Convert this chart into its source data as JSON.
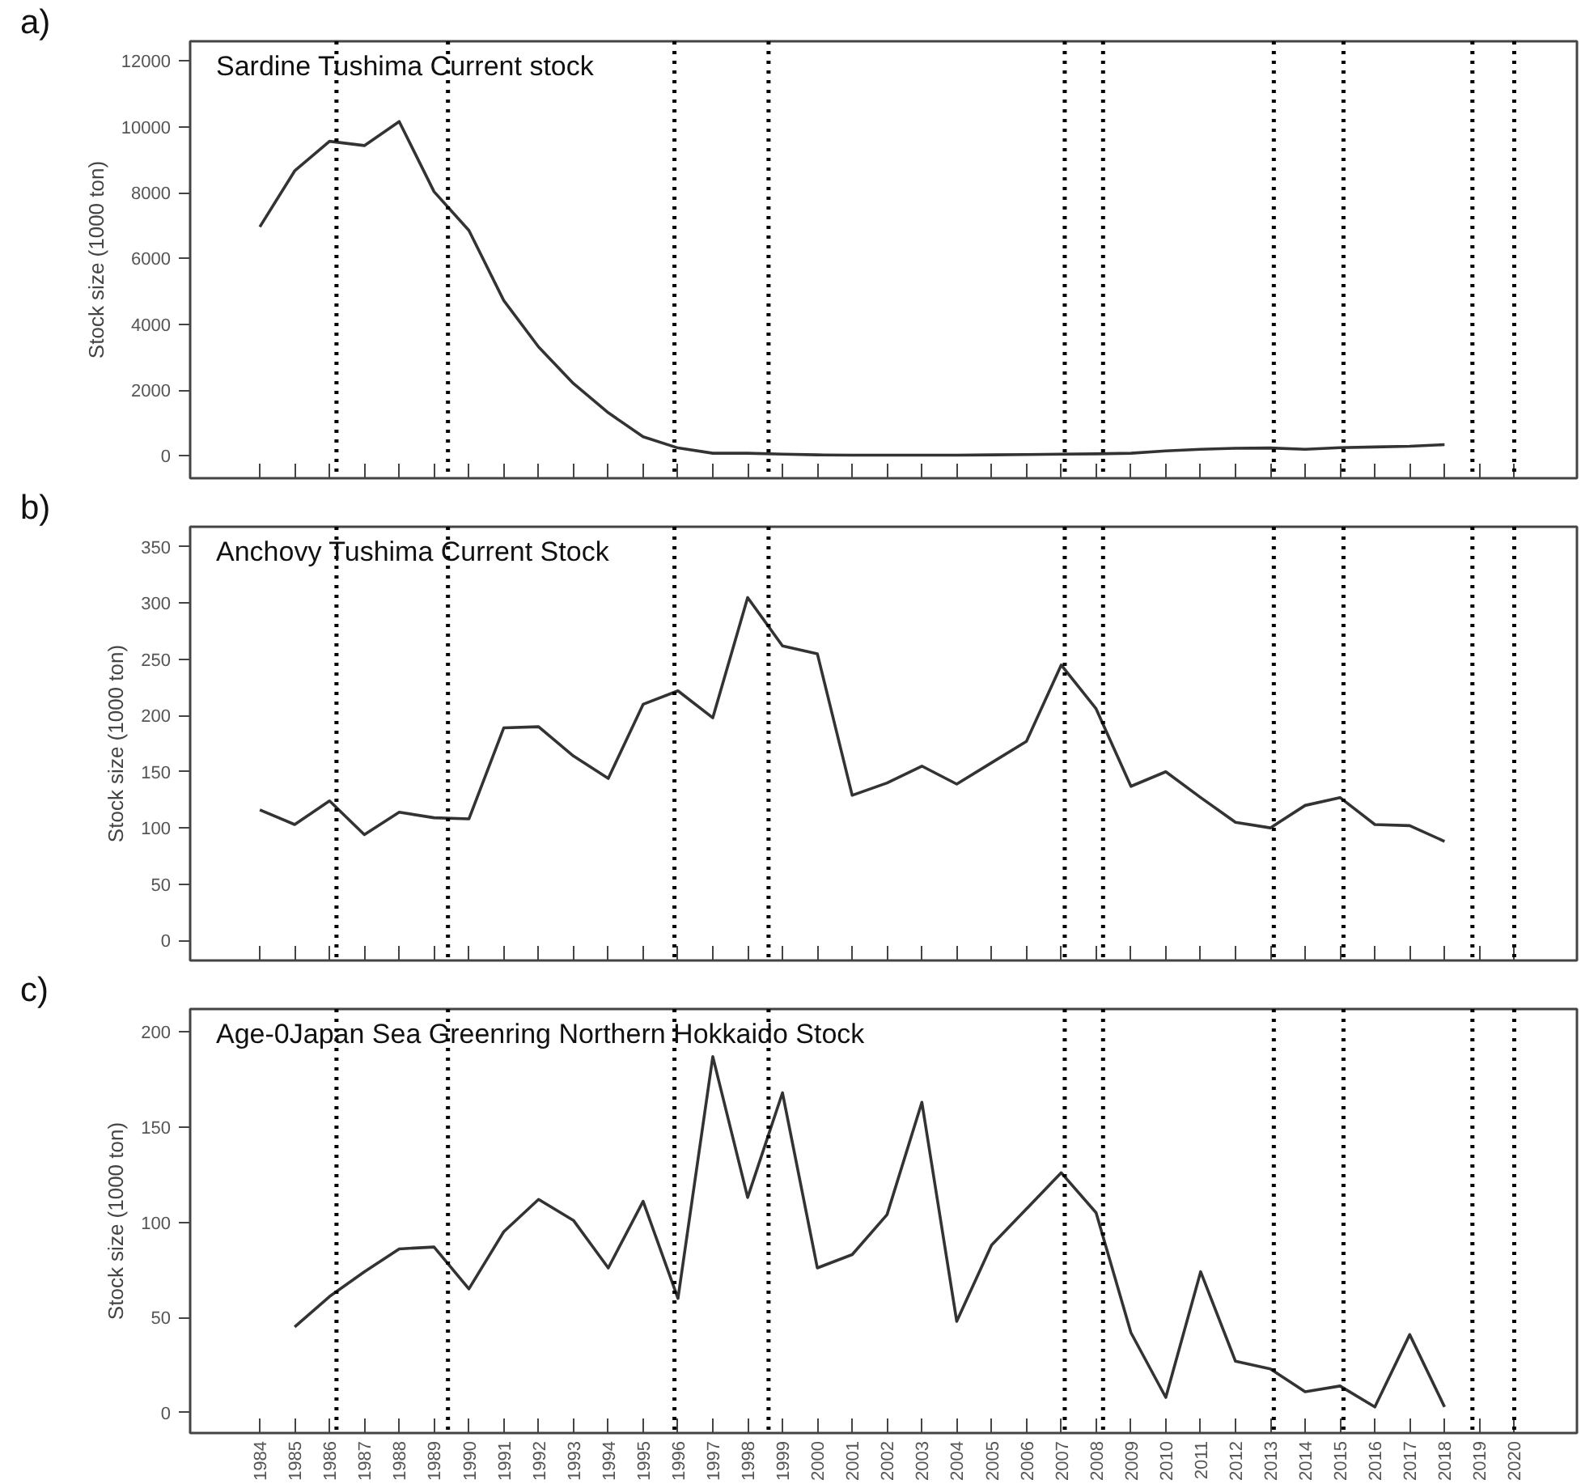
{
  "chart_data": [
    {
      "type": "line",
      "title": "Sardine Tushima Current stock",
      "ylabel": "Stock size (1000 ton)",
      "annotations": [
        "a)"
      ],
      "color": "#333333",
      "x": [
        1984,
        1985,
        1986,
        1987,
        1988,
        1989,
        1990,
        1991,
        1992,
        1993,
        1994,
        1995,
        1996,
        1997,
        1998,
        1999,
        2000,
        2001,
        2002,
        2003,
        2004,
        2005,
        2006,
        2007,
        2008,
        2009,
        2010,
        2011,
        2012,
        2013,
        2014,
        2015,
        2016,
        2017,
        2018
      ],
      "values": [
        6960,
        8660,
        9560,
        9430,
        10160,
        8030,
        6850,
        4720,
        3310,
        2200,
        1310,
        580,
        240,
        80,
        80,
        50,
        30,
        20,
        20,
        20,
        20,
        30,
        40,
        50,
        60,
        80,
        150,
        200,
        230,
        240,
        200,
        250,
        270,
        290,
        340
      ],
      "xlim": [
        1982.0,
        2021.8
      ],
      "xticks": [
        {
          "value": 1984,
          "label": null
        },
        {
          "value": 1985,
          "label": null
        },
        {
          "value": 1986,
          "label": null
        },
        {
          "value": 1987,
          "label": null
        },
        {
          "value": 1988,
          "label": null
        },
        {
          "value": 1989,
          "label": null
        },
        {
          "value": 1990,
          "label": null
        },
        {
          "value": 1991,
          "label": null
        },
        {
          "value": 1992,
          "label": null
        },
        {
          "value": 1993,
          "label": null
        },
        {
          "value": 1994,
          "label": null
        },
        {
          "value": 1995,
          "label": null
        },
        {
          "value": 1996,
          "label": null
        },
        {
          "value": 1997,
          "label": null
        },
        {
          "value": 1998,
          "label": null
        },
        {
          "value": 1999,
          "label": null
        },
        {
          "value": 2000,
          "label": null
        },
        {
          "value": 2001,
          "label": null
        },
        {
          "value": 2002,
          "label": null
        },
        {
          "value": 2003,
          "label": null
        },
        {
          "value": 2004,
          "label": null
        },
        {
          "value": 2005,
          "label": null
        },
        {
          "value": 2006,
          "label": null
        },
        {
          "value": 2007,
          "label": null
        },
        {
          "value": 2008,
          "label": null
        },
        {
          "value": 2009,
          "label": null
        },
        {
          "value": 2010,
          "label": null
        },
        {
          "value": 2011,
          "label": null
        },
        {
          "value": 2012,
          "label": null
        },
        {
          "value": 2013,
          "label": null
        },
        {
          "value": 2014,
          "label": null
        },
        {
          "value": 2015,
          "label": null
        },
        {
          "value": 2016,
          "label": null
        },
        {
          "value": 2017,
          "label": null
        },
        {
          "value": 2018,
          "label": null
        },
        {
          "value": 2019,
          "label": null
        },
        {
          "value": 2020,
          "label": null
        }
      ],
      "ylim": [
        -680,
        12600
      ],
      "yticks": [
        0,
        2000,
        4000,
        6000,
        8000,
        10000,
        12000
      ],
      "tick_labels": "y",
      "grid": false,
      "ref_lines": [
        {
          "axis": "x",
          "value": 1986.2,
          "color": "#000000",
          "line_style": "dotted"
        },
        {
          "axis": "x",
          "value": 1989.4,
          "color": "#000000",
          "line_style": "dotted"
        },
        {
          "axis": "x",
          "value": 1995.9,
          "color": "#000000",
          "line_style": "dotted"
        },
        {
          "axis": "x",
          "value": 1998.6,
          "color": "#000000",
          "line_style": "dotted"
        },
        {
          "axis": "x",
          "value": 2007.1,
          "color": "#000000",
          "line_style": "dotted"
        },
        {
          "axis": "x",
          "value": 2008.2,
          "color": "#000000",
          "line_style": "dotted"
        },
        {
          "axis": "x",
          "value": 2013.1,
          "color": "#000000",
          "line_style": "dotted"
        },
        {
          "axis": "x",
          "value": 2015.1,
          "color": "#000000",
          "line_style": "dotted"
        },
        {
          "axis": "x",
          "value": 2018.8,
          "color": "#000000",
          "line_style": "dotted"
        },
        {
          "axis": "x",
          "value": 2020.0,
          "color": "#000000",
          "line_style": "dotted"
        }
      ]
    },
    {
      "type": "line",
      "title": "Anchovy Tushima Current Stock",
      "ylabel": "Stock size (1000 ton)",
      "annotations": [
        "b)"
      ],
      "color": "#333333",
      "x": [
        1984,
        1985,
        1986,
        1987,
        1988,
        1989,
        1990,
        1991,
        1992,
        1993,
        1994,
        1995,
        1996,
        1997,
        1998,
        1999,
        2000,
        2001,
        2002,
        2003,
        2004,
        2005,
        2006,
        2007,
        2008,
        2009,
        2010,
        2011,
        2012,
        2013,
        2014,
        2015,
        2016,
        2017,
        2018
      ],
      "values": [
        116,
        103,
        124,
        94,
        114,
        109,
        108,
        189,
        190,
        164,
        144,
        210,
        222,
        198,
        305,
        262,
        255,
        129,
        140,
        155,
        139,
        158,
        177,
        245,
        206,
        137,
        150,
        127,
        105,
        100,
        120,
        127,
        103,
        102,
        88
      ],
      "xlim": [
        1982.0,
        2021.8
      ],
      "xticks": [
        {
          "value": 1984,
          "label": null
        },
        {
          "value": 1985,
          "label": null
        },
        {
          "value": 1986,
          "label": null
        },
        {
          "value": 1987,
          "label": null
        },
        {
          "value": 1988,
          "label": null
        },
        {
          "value": 1989,
          "label": null
        },
        {
          "value": 1990,
          "label": null
        },
        {
          "value": 1991,
          "label": null
        },
        {
          "value": 1992,
          "label": null
        },
        {
          "value": 1993,
          "label": null
        },
        {
          "value": 1994,
          "label": null
        },
        {
          "value": 1995,
          "label": null
        },
        {
          "value": 1996,
          "label": null
        },
        {
          "value": 1997,
          "label": null
        },
        {
          "value": 1998,
          "label": null
        },
        {
          "value": 1999,
          "label": null
        },
        {
          "value": 2000,
          "label": null
        },
        {
          "value": 2001,
          "label": null
        },
        {
          "value": 2002,
          "label": null
        },
        {
          "value": 2003,
          "label": null
        },
        {
          "value": 2004,
          "label": null
        },
        {
          "value": 2005,
          "label": null
        },
        {
          "value": 2006,
          "label": null
        },
        {
          "value": 2007,
          "label": null
        },
        {
          "value": 2008,
          "label": null
        },
        {
          "value": 2009,
          "label": null
        },
        {
          "value": 2010,
          "label": null
        },
        {
          "value": 2011,
          "label": null
        },
        {
          "value": 2012,
          "label": null
        },
        {
          "value": 2013,
          "label": null
        },
        {
          "value": 2014,
          "label": null
        },
        {
          "value": 2015,
          "label": null
        },
        {
          "value": 2016,
          "label": null
        },
        {
          "value": 2017,
          "label": null
        },
        {
          "value": 2018,
          "label": null
        },
        {
          "value": 2019,
          "label": null
        },
        {
          "value": 2020,
          "label": null
        }
      ],
      "ylim": [
        -18,
        368
      ],
      "yticks": [
        0,
        50,
        100,
        150,
        200,
        250,
        300,
        350
      ],
      "tick_labels": "y",
      "grid": false,
      "ref_lines": [
        {
          "axis": "x",
          "value": 1986.2,
          "color": "#000000",
          "line_style": "dotted"
        },
        {
          "axis": "x",
          "value": 1989.4,
          "color": "#000000",
          "line_style": "dotted"
        },
        {
          "axis": "x",
          "value": 1995.9,
          "color": "#000000",
          "line_style": "dotted"
        },
        {
          "axis": "x",
          "value": 1998.6,
          "color": "#000000",
          "line_style": "dotted"
        },
        {
          "axis": "x",
          "value": 2007.1,
          "color": "#000000",
          "line_style": "dotted"
        },
        {
          "axis": "x",
          "value": 2008.2,
          "color": "#000000",
          "line_style": "dotted"
        },
        {
          "axis": "x",
          "value": 2013.1,
          "color": "#000000",
          "line_style": "dotted"
        },
        {
          "axis": "x",
          "value": 2015.1,
          "color": "#000000",
          "line_style": "dotted"
        },
        {
          "axis": "x",
          "value": 2018.8,
          "color": "#000000",
          "line_style": "dotted"
        },
        {
          "axis": "x",
          "value": 2020.0,
          "color": "#000000",
          "line_style": "dotted"
        }
      ]
    },
    {
      "type": "line",
      "title": "Age-0Japan Sea Greenring Northern Hokkaido Stock",
      "ylabel": "Stock size (1000 ton)",
      "annotations": [
        "c)"
      ],
      "color": "#333333",
      "x": [
        1985,
        1986,
        1987,
        1988,
        1989,
        1990,
        1991,
        1992,
        1993,
        1994,
        1995,
        1996,
        1997,
        1998,
        1999,
        2000,
        2001,
        2002,
        2003,
        2004,
        2005,
        2006,
        2007,
        2008,
        2009,
        2010,
        2011,
        2012,
        2013,
        2014,
        2015,
        2016,
        2017,
        2018
      ],
      "values": [
        45,
        61,
        74,
        86,
        87,
        65,
        95,
        112,
        101,
        76,
        111,
        60,
        187,
        113,
        168,
        76,
        83,
        104,
        163,
        48,
        88,
        107,
        126,
        105,
        42,
        8,
        74,
        27,
        23,
        11,
        14,
        3,
        41,
        3
      ],
      "xlim": [
        1982.0,
        2021.8
      ],
      "xticks": [
        1984,
        1985,
        1986,
        1987,
        1988,
        1989,
        1990,
        1991,
        1992,
        1993,
        1994,
        1995,
        1996,
        1997,
        1998,
        1999,
        2000,
        2001,
        2002,
        2003,
        2004,
        2005,
        2006,
        2007,
        2008,
        2009,
        2010,
        2011,
        2012,
        2013,
        2014,
        2015,
        2016,
        2017,
        2018,
        2019,
        2020
      ],
      "ylim": [
        -10.7,
        212
      ],
      "yticks": [
        0,
        50,
        100,
        150,
        200
      ],
      "grid": false,
      "ref_lines": [
        {
          "axis": "x",
          "value": 1986.2,
          "color": "#000000",
          "line_style": "dotted"
        },
        {
          "axis": "x",
          "value": 1989.4,
          "color": "#000000",
          "line_style": "dotted"
        },
        {
          "axis": "x",
          "value": 1995.9,
          "color": "#000000",
          "line_style": "dotted"
        },
        {
          "axis": "x",
          "value": 1998.6,
          "color": "#000000",
          "line_style": "dotted"
        },
        {
          "axis": "x",
          "value": 2007.1,
          "color": "#000000",
          "line_style": "dotted"
        },
        {
          "axis": "x",
          "value": 2008.2,
          "color": "#000000",
          "line_style": "dotted"
        },
        {
          "axis": "x",
          "value": 2013.1,
          "color": "#000000",
          "line_style": "dotted"
        },
        {
          "axis": "x",
          "value": 2015.1,
          "color": "#000000",
          "line_style": "dotted"
        },
        {
          "axis": "x",
          "value": 2018.8,
          "color": "#000000",
          "line_style": "dotted"
        },
        {
          "axis": "x",
          "value": 2020.0,
          "color": "#000000",
          "line_style": "dotted"
        }
      ]
    }
  ]
}
